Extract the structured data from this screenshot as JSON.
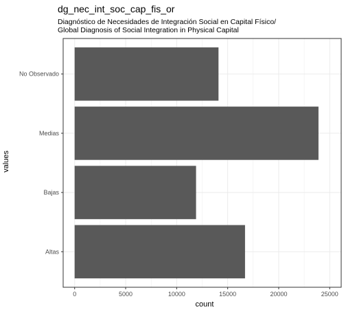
{
  "chart_data": {
    "type": "bar",
    "orientation": "horizontal",
    "title": "dg_nec_int_soc_cap_fis_or",
    "subtitle": [
      "Diagnóstico de Necesidades de Integración Social en Capital Físico/",
      "Global Diagnosis of Social Integration in Physical Capital"
    ],
    "xlabel": "count",
    "ylabel": "values",
    "categories": [
      "Altas",
      "Bajas",
      "Medias",
      "No Observado"
    ],
    "values": [
      16700,
      11900,
      23900,
      14100
    ],
    "xlim": [
      0,
      25000
    ],
    "xticks": [
      0,
      5000,
      10000,
      15000,
      20000,
      25000
    ],
    "xtick_labels": [
      "0",
      "5000",
      "10000",
      "15000",
      "20000",
      "25000"
    ],
    "grid": true,
    "bar_color": "#595959",
    "grid_color": "#ebebeb",
    "border_color": "#333333"
  }
}
